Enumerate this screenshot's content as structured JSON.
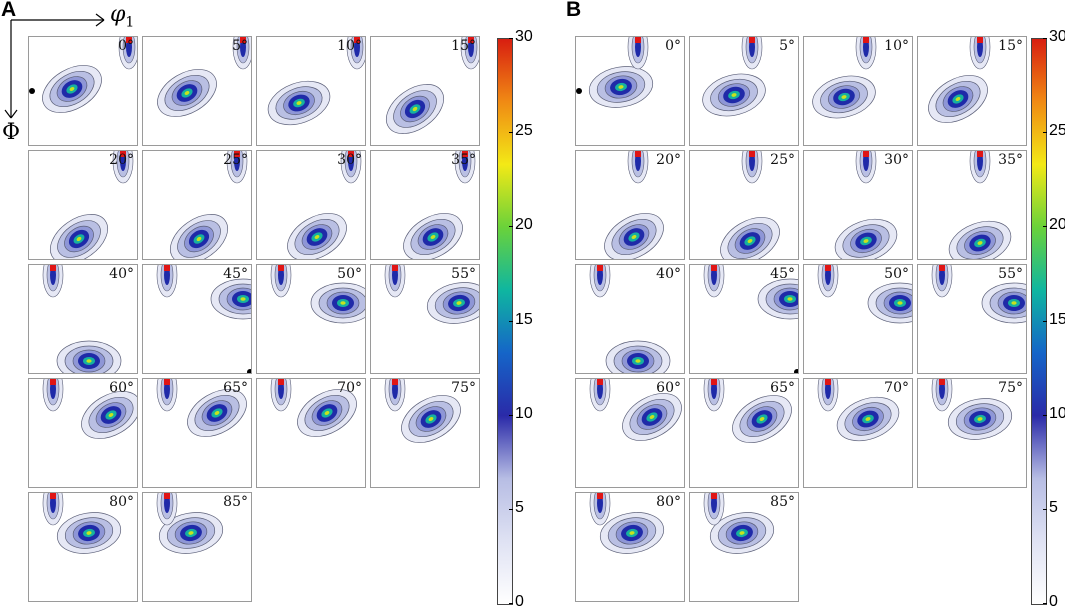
{
  "panels": [
    {
      "letter": "A",
      "angles": [
        "0°",
        "5°",
        "10°",
        "15°",
        "20°",
        "25°",
        "30°",
        "35°",
        "40°",
        "45°",
        "50°",
        "55°",
        "60°",
        "65°",
        "70°",
        "75°",
        "80°",
        "85°"
      ]
    },
    {
      "letter": "B",
      "angles": [
        "0°",
        "5°",
        "10°",
        "15°",
        "20°",
        "25°",
        "30°",
        "35°",
        "40°",
        "45°",
        "50°",
        "55°",
        "60°",
        "65°",
        "70°",
        "75°",
        "80°",
        "85°"
      ]
    }
  ],
  "axes": {
    "horizontal": "φ",
    "horizontal_sub": "1",
    "vertical": "Φ"
  },
  "colorbar": {
    "ticks": [
      "30",
      "25",
      "20",
      "15",
      "10",
      "5",
      "0"
    ],
    "min": 0,
    "max": 30,
    "colors": [
      "#ffffff",
      "#dfe2f3",
      "#b7bde4",
      "#2a2aa8",
      "#1565c8",
      "#0fb6a0",
      "#6ad23a",
      "#f3e916",
      "#f08a14",
      "#d81e10"
    ]
  },
  "colors": {
    "contour_line": "#5b5f78",
    "fill_low": "#e6e8f5",
    "fill_mid": "#b9bfe3",
    "marker_red": "#e01515",
    "marker_black": "#000000",
    "marker_star": "#e966d9",
    "marker_triangle": "#2136c8"
  }
}
